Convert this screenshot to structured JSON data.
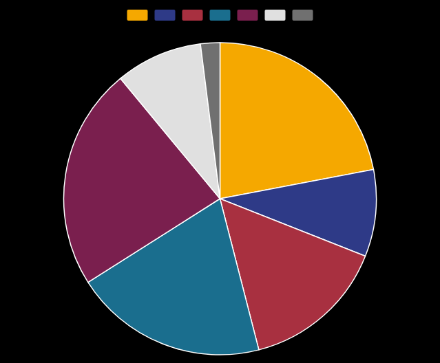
{
  "chart_data": {
    "type": "pie",
    "values": [
      22,
      9,
      15,
      20,
      23,
      9,
      2
    ],
    "colors": [
      "#F5A800",
      "#2E3A87",
      "#A83040",
      "#1A6E8E",
      "#7A1F4E",
      "#E0E0E0",
      "#707070"
    ],
    "legend": "top"
  }
}
